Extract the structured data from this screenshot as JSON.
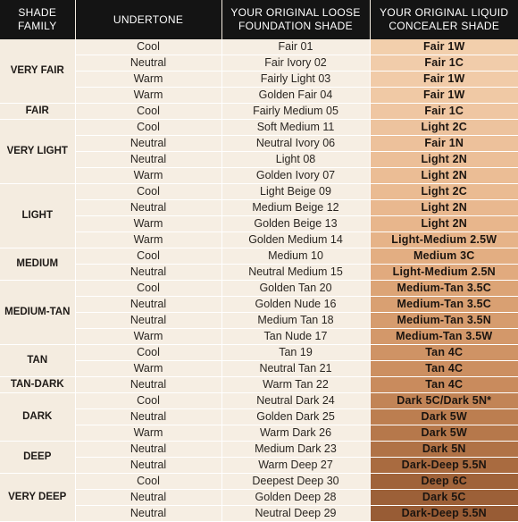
{
  "header": {
    "col1": "SHADE FAMILY",
    "col2": "UNDERTONE",
    "col3": "YOUR ORIGINAL LOOSE FOUNDATION SHADE",
    "col4": "YOUR ORIGINAL LIQUID CONCEALER SHADE"
  },
  "groups": [
    {
      "family": "VERY FAIR",
      "rows": [
        {
          "undertone": "Cool",
          "loose": "Fair 01",
          "liquid": "Fair 1W",
          "color": "#f2cfac"
        },
        {
          "undertone": "Neutral",
          "loose": "Fair Ivory 02",
          "liquid": "Fair 1C",
          "color": "#f1ccaa"
        },
        {
          "undertone": "Warm",
          "loose": "Fairly Light 03",
          "liquid": "Fair 1W",
          "color": "#f1cba8"
        },
        {
          "undertone": "Warm",
          "loose": "Golden Fair 04",
          "liquid": "Fair 1W",
          "color": "#f0c9a5"
        }
      ]
    },
    {
      "family": "FAIR",
      "rows": [
        {
          "undertone": "Cool",
          "loose": "Fairly Medium 05",
          "liquid": "Fair 1C",
          "color": "#efc6a2"
        }
      ]
    },
    {
      "family": "VERY LIGHT",
      "rows": [
        {
          "undertone": "Cool",
          "loose": "Soft Medium 11",
          "liquid": "Light 2C",
          "color": "#edc39e"
        },
        {
          "undertone": "Neutral",
          "loose": "Neutral Ivory 06",
          "liquid": "Fair 1N",
          "color": "#edc19b"
        },
        {
          "undertone": "Neutral",
          "loose": "Light 08",
          "liquid": "Light 2N",
          "color": "#ecbf98"
        },
        {
          "undertone": "Warm",
          "loose": "Golden Ivory 07",
          "liquid": "Light 2N",
          "color": "#ebbd95"
        }
      ]
    },
    {
      "family": "LIGHT",
      "rows": [
        {
          "undertone": "Cool",
          "loose": "Light Beige 09",
          "liquid": "Light 2C",
          "color": "#eabb92"
        },
        {
          "undertone": "Neutral",
          "loose": "Medium Beige 12",
          "liquid": "Light 2N",
          "color": "#e9b88f"
        },
        {
          "undertone": "Warm",
          "loose": "Golden Beige 13",
          "liquid": "Light 2N",
          "color": "#e8b68c"
        },
        {
          "undertone": "Warm",
          "loose": "Golden Medium 14",
          "liquid": "Light-Medium 2.5W",
          "color": "#e6b388"
        }
      ]
    },
    {
      "family": "MEDIUM",
      "rows": [
        {
          "undertone": "Cool",
          "loose": "Medium 10",
          "liquid": "Medium 3C",
          "color": "#e3ae82"
        },
        {
          "undertone": "Neutral",
          "loose": "Neutral Medium 15",
          "liquid": "Light-Medium 2.5N",
          "color": "#e1aa7e"
        }
      ]
    },
    {
      "family": "MEDIUM-TAN",
      "rows": [
        {
          "undertone": "Cool",
          "loose": "Golden Tan 20",
          "liquid": "Medium-Tan 3.5C",
          "color": "#dca476"
        },
        {
          "undertone": "Neutral",
          "loose": "Golden Nude 16",
          "liquid": "Medium-Tan 3.5C",
          "color": "#d9a072"
        },
        {
          "undertone": "Neutral",
          "loose": "Medium Tan 18",
          "liquid": "Medium-Tan 3.5N",
          "color": "#d69c6e"
        },
        {
          "undertone": "Warm",
          "loose": "Tan Nude 17",
          "liquid": "Medium-Tan 3.5W",
          "color": "#d3986a"
        }
      ]
    },
    {
      "family": "TAN",
      "rows": [
        {
          "undertone": "Cool",
          "loose": "Tan 19",
          "liquid": "Tan 4C",
          "color": "#cf9365"
        },
        {
          "undertone": "Warm",
          "loose": "Neutral Tan 21",
          "liquid": "Tan 4C",
          "color": "#cc8f61"
        }
      ]
    },
    {
      "family": "TAN-DARK",
      "rows": [
        {
          "undertone": "Neutral",
          "loose": "Warm Tan 22",
          "liquid": "Tan 4C",
          "color": "#c98b5d"
        }
      ]
    },
    {
      "family": "DARK",
      "rows": [
        {
          "undertone": "Cool",
          "loose": "Neutral Dark 24",
          "liquid": "Dark 5C/Dark 5N*",
          "color": "#c28456"
        },
        {
          "undertone": "Neutral",
          "loose": "Golden Dark 25",
          "liquid": "Dark 5W",
          "color": "#bc7e50"
        },
        {
          "undertone": "Warm",
          "loose": "Warm Dark 26",
          "liquid": "Dark 5W",
          "color": "#b6784b"
        }
      ]
    },
    {
      "family": "DEEP",
      "rows": [
        {
          "undertone": "Neutral",
          "loose": "Medium Dark 23",
          "liquid": "Dark 5N",
          "color": "#b07246"
        },
        {
          "undertone": "Neutral",
          "loose": "Warm Deep 27",
          "liquid": "Dark-Deep 5.5N",
          "color": "#a96b40"
        }
      ]
    },
    {
      "family": "VERY DEEP",
      "rows": [
        {
          "undertone": "Cool",
          "loose": "Deepest Deep 30",
          "liquid": "Deep 6C",
          "color": "#a0633a"
        },
        {
          "undertone": "Neutral",
          "loose": "Golden Deep 28",
          "liquid": "Dark 5C",
          "color": "#9c6038"
        },
        {
          "undertone": "Neutral",
          "loose": "Neutral Deep 29",
          "liquid": "Dark-Deep 5.5N",
          "color": "#985c35"
        }
      ]
    }
  ]
}
